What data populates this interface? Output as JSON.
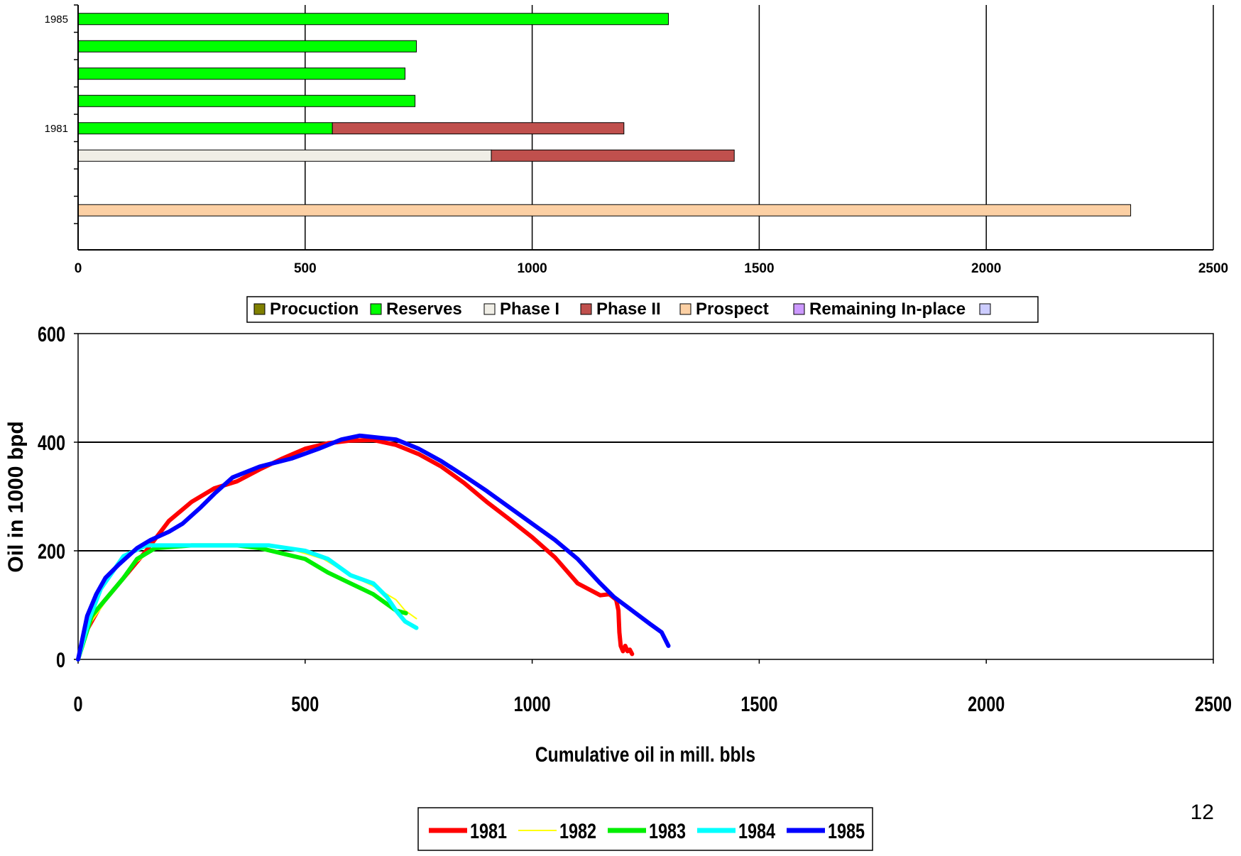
{
  "chart_data": [
    {
      "type": "bar",
      "orientation": "horizontal",
      "stacked": true,
      "xlim": [
        0,
        2500
      ],
      "x_ticks": [
        0,
        500,
        1000,
        1500,
        2000,
        2500
      ],
      "grid": "vertical",
      "legend_placement": "bottom",
      "category_labels": [
        "1985",
        "",
        "",
        "",
        "1981",
        "",
        "",
        ""
      ],
      "legend": [
        {
          "name": "Procuction",
          "color": "#808000"
        },
        {
          "name": "Reserves",
          "color": "#00ff00"
        },
        {
          "name": "Phase I",
          "color": "#f0eee6"
        },
        {
          "name": "Phase II",
          "color": "#c0504d"
        },
        {
          "name": "Prospect",
          "color": "#fcd0a4"
        },
        {
          "name": "Remaining In-place",
          "color": "#cc99ff"
        },
        {
          "name": "",
          "color": "#ccccff"
        }
      ],
      "rows": [
        {
          "label": "1985",
          "segments": [
            {
              "series": "Reserves",
              "value": 1300
            }
          ]
        },
        {
          "label": "",
          "segments": [
            {
              "series": "Reserves",
              "value": 745
            }
          ]
        },
        {
          "label": "",
          "segments": [
            {
              "series": "Reserves",
              "value": 720
            }
          ]
        },
        {
          "label": "",
          "segments": [
            {
              "series": "Reserves",
              "value": 742
            }
          ]
        },
        {
          "label": "1981",
          "segments": [
            {
              "series": "Reserves",
              "value": 560
            },
            {
              "series": "Phase II",
              "value": 642
            }
          ]
        },
        {
          "label": "",
          "segments": [
            {
              "series": "Phase I",
              "value": 910
            },
            {
              "series": "Phase II",
              "value": 535
            }
          ]
        },
        {
          "label": "",
          "segments": []
        },
        {
          "label": "",
          "segments": [
            {
              "series": "Prospect",
              "value": 2318
            }
          ]
        }
      ]
    },
    {
      "type": "line",
      "xlabel": "Cumulative oil in mill. bbls",
      "ylabel": "Oil in 1000 bpd",
      "xlim": [
        0,
        2500
      ],
      "ylim": [
        0,
        600
      ],
      "x_ticks": [
        0,
        500,
        1000,
        1500,
        2000,
        2500
      ],
      "y_ticks": [
        0,
        200,
        400,
        600
      ],
      "grid": "horizontal",
      "legend_placement": "bottom",
      "series": [
        {
          "name": "1981",
          "color": "#ff0000",
          "width": 6,
          "points": [
            [
              0,
              0
            ],
            [
              20,
              55
            ],
            [
              50,
              100
            ],
            [
              100,
              150
            ],
            [
              150,
              200
            ],
            [
              200,
              255
            ],
            [
              250,
              290
            ],
            [
              300,
              315
            ],
            [
              350,
              328
            ],
            [
              400,
              350
            ],
            [
              450,
              370
            ],
            [
              500,
              388
            ],
            [
              550,
              398
            ],
            [
              600,
              403
            ],
            [
              650,
              404
            ],
            [
              700,
              395
            ],
            [
              750,
              378
            ],
            [
              800,
              355
            ],
            [
              850,
              325
            ],
            [
              900,
              290
            ],
            [
              950,
              258
            ],
            [
              1000,
              225
            ],
            [
              1050,
              188
            ],
            [
              1100,
              140
            ],
            [
              1150,
              118
            ],
            [
              1170,
              120
            ],
            [
              1185,
              110
            ],
            [
              1190,
              90
            ],
            [
              1192,
              50
            ],
            [
              1195,
              25
            ],
            [
              1200,
              15
            ],
            [
              1205,
              25
            ],
            [
              1210,
              15
            ],
            [
              1215,
              18
            ],
            [
              1220,
              10
            ]
          ]
        },
        {
          "name": "1982",
          "color": "#ffff00",
          "width": 2,
          "points": [
            [
              0,
              0
            ],
            [
              30,
              70
            ],
            [
              80,
              130
            ],
            [
              130,
              180
            ],
            [
              170,
              205
            ],
            [
              250,
              210
            ],
            [
              350,
              210
            ],
            [
              420,
              208
            ],
            [
              480,
              200
            ],
            [
              540,
              185
            ],
            [
              600,
              155
            ],
            [
              650,
              135
            ],
            [
              700,
              110
            ],
            [
              720,
              90
            ],
            [
              745,
              75
            ]
          ]
        },
        {
          "name": "1983",
          "color": "#00ee00",
          "width": 6,
          "points": [
            [
              0,
              0
            ],
            [
              30,
              80
            ],
            [
              70,
              120
            ],
            [
              100,
              150
            ],
            [
              130,
              185
            ],
            [
              170,
              205
            ],
            [
              250,
              210
            ],
            [
              350,
              210
            ],
            [
              400,
              205
            ],
            [
              450,
              195
            ],
            [
              500,
              185
            ],
            [
              550,
              160
            ],
            [
              600,
              140
            ],
            [
              650,
              120
            ],
            [
              700,
              90
            ],
            [
              722,
              85
            ]
          ]
        },
        {
          "name": "1984",
          "color": "#00ffff",
          "width": 6,
          "points": [
            [
              0,
              0
            ],
            [
              25,
              75
            ],
            [
              50,
              130
            ],
            [
              100,
              190
            ],
            [
              150,
              210
            ],
            [
              250,
              210
            ],
            [
              350,
              210
            ],
            [
              420,
              210
            ],
            [
              500,
              200
            ],
            [
              550,
              185
            ],
            [
              600,
              155
            ],
            [
              650,
              140
            ],
            [
              680,
              115
            ],
            [
              700,
              90
            ],
            [
              720,
              70
            ],
            [
              745,
              58
            ]
          ]
        },
        {
          "name": "1985",
          "color": "#0000ff",
          "width": 6,
          "points": [
            [
              0,
              0
            ],
            [
              20,
              80
            ],
            [
              40,
              120
            ],
            [
              60,
              150
            ],
            [
              90,
              175
            ],
            [
              130,
              205
            ],
            [
              160,
              220
            ],
            [
              200,
              235
            ],
            [
              230,
              250
            ],
            [
              270,
              280
            ],
            [
              300,
              305
            ],
            [
              340,
              335
            ],
            [
              400,
              355
            ],
            [
              470,
              370
            ],
            [
              530,
              388
            ],
            [
              580,
              405
            ],
            [
              620,
              412
            ],
            [
              700,
              405
            ],
            [
              750,
              388
            ],
            [
              800,
              365
            ],
            [
              850,
              338
            ],
            [
              900,
              310
            ],
            [
              950,
              280
            ],
            [
              1000,
              250
            ],
            [
              1050,
              220
            ],
            [
              1100,
              185
            ],
            [
              1150,
              140
            ],
            [
              1180,
              115
            ],
            [
              1220,
              90
            ],
            [
              1260,
              65
            ],
            [
              1285,
              50
            ],
            [
              1300,
              25
            ]
          ]
        }
      ]
    }
  ],
  "page_number": "12"
}
